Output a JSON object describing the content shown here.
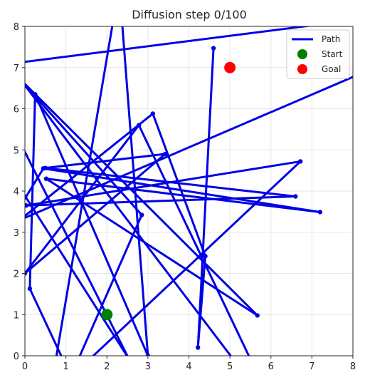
{
  "chart_data": {
    "type": "line",
    "title": "Diffusion step 0/100",
    "xlabel": "",
    "ylabel": "",
    "xlim": [
      0,
      8
    ],
    "ylim": [
      0,
      8
    ],
    "xticks": [
      "0",
      "1",
      "2",
      "3",
      "4",
      "5",
      "6",
      "7",
      "8"
    ],
    "yticks": [
      "0",
      "1",
      "2",
      "3",
      "4",
      "5",
      "6",
      "7",
      "8"
    ],
    "grid": true,
    "legend_position": "top-right",
    "colors": {
      "path": "#0000e6",
      "start": "#008000",
      "goal": "#ff0000",
      "grid": "#e6e6e6",
      "axis": "#262626"
    },
    "series": [
      {
        "name": "Path",
        "x": [
          4.6,
          4.22,
          4.4,
          3.12,
          -0.5,
          0.45,
          7.2,
          0.52,
          5.67,
          -0.2,
          2.85,
          1.12,
          0.12,
          0.25,
          3.0,
          2.3,
          0.6,
          6.72,
          0.03,
          6.6,
          0.5,
          3.42,
          0.0,
          2.78,
          5.7
        ],
        "y": [
          7.47,
          0.2,
          2.42,
          5.88,
          3.0,
          4.55,
          3.49,
          4.3,
          0.98,
          6.8,
          3.42,
          -0.5,
          1.63,
          6.35,
          0.0,
          9.0,
          -1.0,
          4.72,
          3.65,
          3.87,
          4.56,
          4.9,
          2.0,
          5.6,
          -0.5
        ]
      },
      {
        "name": "",
        "x": [
          -0.3,
          8.0
        ],
        "y": [
          7.1,
          8.15
        ]
      },
      {
        "name": "",
        "x": [
          0.0,
          8.3
        ],
        "y": [
          3.35,
          6.9
        ]
      },
      {
        "name": "",
        "x": [
          -0.1,
          5.4
        ],
        "y": [
          6.7,
          -0.5
        ]
      },
      {
        "name": "",
        "x": [
          -0.2,
          3.0
        ],
        "y": [
          4.2,
          -0.8
        ]
      },
      {
        "name": "",
        "x": [
          -0.1,
          2.8
        ],
        "y": [
          5.15,
          -0.6
        ]
      }
    ],
    "markers": [
      {
        "name": "Start",
        "x": 2,
        "y": 1
      },
      {
        "name": "Goal",
        "x": 5,
        "y": 7
      }
    ]
  }
}
